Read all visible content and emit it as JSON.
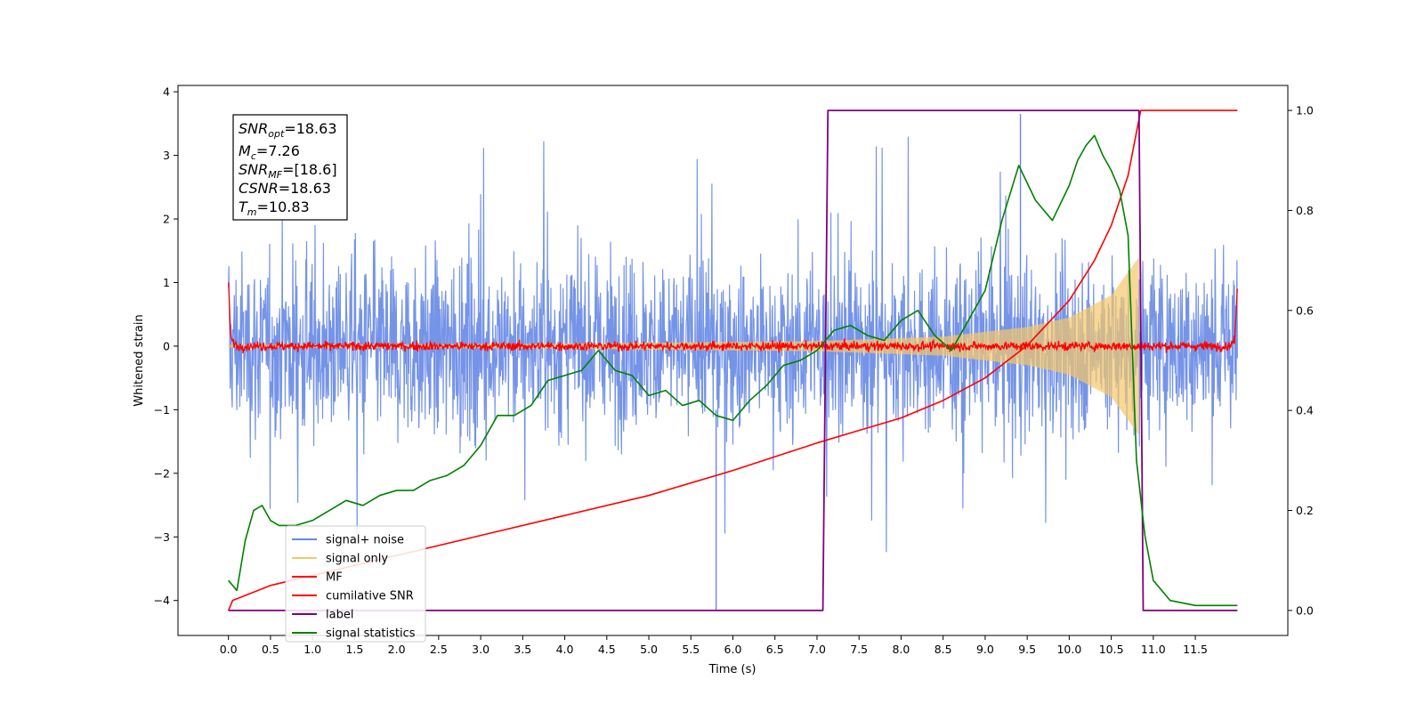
{
  "chart_data": {
    "type": "line",
    "xlabel": "Time (s)",
    "ylabel": "Whitened strain",
    "xlim": [
      -0.6,
      12.6
    ],
    "ylim": [
      -4.55,
      4.1
    ],
    "y2lim": [
      -0.05,
      1.05
    ],
    "x_ticks": [
      "0.0",
      "0.5",
      "1.0",
      "1.5",
      "2.0",
      "2.5",
      "3.0",
      "3.5",
      "4.0",
      "4.5",
      "5.0",
      "5.5",
      "6.0",
      "6.5",
      "7.0",
      "7.5",
      "8.0",
      "8.5",
      "9.0",
      "9.5",
      "10.0",
      "10.5",
      "11.0",
      "11.5"
    ],
    "y_ticks": [
      "4",
      "3",
      "2",
      "1",
      "0",
      "−1",
      "−2",
      "−3",
      "−4"
    ],
    "y2_ticks": [
      "1.0",
      "0.8",
      "0.6",
      "0.4",
      "0.2",
      "0.0"
    ],
    "grid": false,
    "legend_position": "lower-left",
    "legend": [
      {
        "label": "signal+ noise",
        "color": "#6688e6"
      },
      {
        "label": "signal only",
        "color": "#f5c86a"
      },
      {
        "label": "MF",
        "color": "#ff0000"
      },
      {
        "label": "cumilative SNR",
        "color": "#ff0000"
      },
      {
        "label": "label",
        "color": "#800080"
      },
      {
        "label": "signal statistics",
        "color": "#008000"
      }
    ],
    "info_box": [
      {
        "sym": "SNR",
        "sub": "opt",
        "val": "=18.63"
      },
      {
        "sym": "M",
        "sub": "c",
        "val": "=7.26"
      },
      {
        "sym": "SNR",
        "sub": "MF",
        "val": "=[18.6]"
      },
      {
        "sym": "CSNR",
        "sub": "",
        "val": "=18.63"
      },
      {
        "sym": "T",
        "sub": "m",
        "val": "=10.83"
      }
    ],
    "series": [
      {
        "name": "signal+ noise",
        "axis": "left",
        "x_range": [
          0.0,
          12.0
        ],
        "envelope": {
          "upper_typical": 1.8,
          "lower_typical": -1.8,
          "max": 3.65,
          "min": -4.15
        }
      },
      {
        "name": "signal only",
        "axis": "left",
        "chirp_end": 10.83,
        "amplitude": {
          "x": [
            0.0,
            4.0,
            7.0,
            8.5,
            9.5,
            10.0,
            10.5,
            10.83
          ],
          "y": [
            0.02,
            0.04,
            0.08,
            0.15,
            0.3,
            0.45,
            0.8,
            1.4
          ]
        }
      },
      {
        "name": "MF",
        "axis": "left",
        "x": [
          0.0,
          0.03,
          0.1,
          11.9,
          11.97,
          12.0
        ],
        "y": [
          1.0,
          0.1,
          0.0,
          0.0,
          0.1,
          0.93
        ]
      },
      {
        "name": "cumilative SNR",
        "axis": "right",
        "x": [
          0.0,
          0.05,
          0.5,
          1.0,
          2.0,
          3.0,
          4.0,
          5.0,
          6.0,
          7.0,
          7.5,
          8.0,
          8.5,
          9.0,
          9.5,
          10.0,
          10.3,
          10.5,
          10.7,
          10.85,
          12.0
        ],
        "y": [
          0.0,
          0.02,
          0.05,
          0.07,
          0.11,
          0.15,
          0.19,
          0.23,
          0.28,
          0.335,
          0.36,
          0.385,
          0.42,
          0.465,
          0.53,
          0.62,
          0.7,
          0.77,
          0.87,
          1.0,
          1.0
        ]
      },
      {
        "name": "label",
        "axis": "right",
        "x": [
          0.0,
          7.07,
          7.13,
          10.83,
          10.88,
          12.0
        ],
        "y": [
          0.0,
          0.0,
          1.0,
          1.0,
          0.0,
          0.0
        ]
      },
      {
        "name": "signal statistics",
        "axis": "right",
        "x": [
          0.0,
          0.1,
          0.2,
          0.3,
          0.4,
          0.5,
          0.6,
          0.8,
          1.0,
          1.2,
          1.4,
          1.6,
          1.8,
          2.0,
          2.2,
          2.4,
          2.6,
          2.8,
          3.0,
          3.2,
          3.4,
          3.6,
          3.8,
          4.0,
          4.2,
          4.4,
          4.6,
          4.8,
          5.0,
          5.2,
          5.4,
          5.6,
          5.8,
          6.0,
          6.2,
          6.4,
          6.6,
          6.8,
          7.0,
          7.2,
          7.4,
          7.6,
          7.8,
          8.0,
          8.2,
          8.4,
          8.6,
          8.8,
          9.0,
          9.2,
          9.4,
          9.6,
          9.8,
          10.0,
          10.1,
          10.2,
          10.3,
          10.4,
          10.5,
          10.6,
          10.7,
          10.8,
          10.9,
          11.0,
          11.2,
          11.5,
          11.8,
          12.0
        ],
        "y": [
          0.06,
          0.04,
          0.14,
          0.2,
          0.21,
          0.18,
          0.17,
          0.17,
          0.18,
          0.2,
          0.22,
          0.21,
          0.23,
          0.24,
          0.24,
          0.26,
          0.27,
          0.29,
          0.33,
          0.39,
          0.39,
          0.41,
          0.46,
          0.47,
          0.48,
          0.52,
          0.48,
          0.47,
          0.43,
          0.44,
          0.41,
          0.42,
          0.39,
          0.38,
          0.42,
          0.45,
          0.49,
          0.5,
          0.52,
          0.56,
          0.57,
          0.55,
          0.54,
          0.58,
          0.6,
          0.55,
          0.52,
          0.58,
          0.64,
          0.78,
          0.89,
          0.82,
          0.78,
          0.85,
          0.9,
          0.93,
          0.95,
          0.91,
          0.88,
          0.84,
          0.75,
          0.3,
          0.15,
          0.06,
          0.02,
          0.01,
          0.01,
          0.01
        ]
      }
    ]
  }
}
